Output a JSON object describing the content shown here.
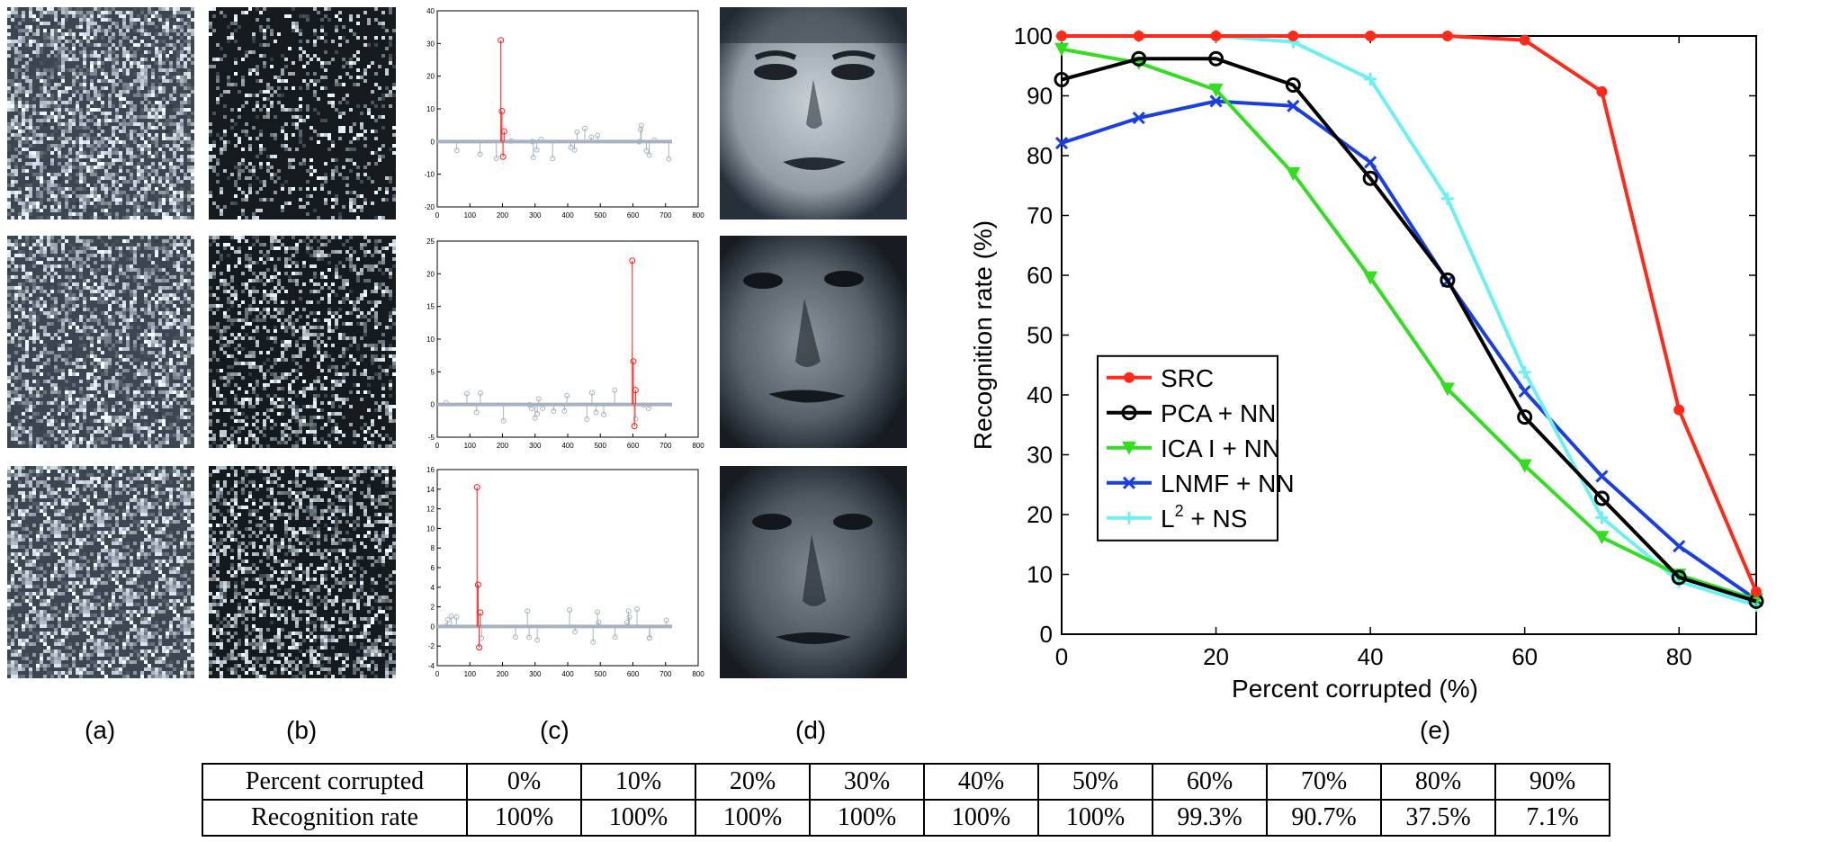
{
  "captions": [
    "(a)",
    "(b)",
    "(c)",
    "(d)",
    "(e)"
  ],
  "stem_plots": [
    {
      "yticks": [
        "40",
        "30",
        "20",
        "10",
        "0",
        "-10",
        "-20"
      ],
      "ylim": [
        -20,
        40
      ],
      "xticks": [
        "0",
        "100",
        "200",
        "300",
        "400",
        "500",
        "600",
        "700",
        "800"
      ],
      "xlim": [
        0,
        800
      ],
      "peak": {
        "x": 195,
        "y": 31
      }
    },
    {
      "yticks": [
        "25",
        "20",
        "15",
        "10",
        "5",
        "0",
        "-5"
      ],
      "ylim": [
        -5,
        25
      ],
      "xticks": [
        "0",
        "100",
        "200",
        "300",
        "400",
        "500",
        "600",
        "700",
        "800"
      ],
      "xlim": [
        0,
        800
      ],
      "peak": {
        "x": 598,
        "y": 22
      }
    },
    {
      "yticks": [
        "16",
        "14",
        "12",
        "10",
        "8",
        "6",
        "4",
        "2",
        "0",
        "-2",
        "-4"
      ],
      "ylim": [
        -4,
        16
      ],
      "xticks": [
        "0",
        "100",
        "200",
        "300",
        "400",
        "500",
        "600",
        "700",
        "800"
      ],
      "xlim": [
        0,
        800
      ],
      "peak": {
        "x": 122,
        "y": 14.2
      }
    }
  ],
  "chart_data": {
    "type": "line",
    "xlabel": "Percent corrupted (%)",
    "ylabel": "Recognition rate (%)",
    "xlim": [
      0,
      90
    ],
    "ylim": [
      0,
      100
    ],
    "xticks": [
      0,
      20,
      40,
      60,
      80
    ],
    "yticks": [
      0,
      10,
      20,
      30,
      40,
      50,
      60,
      70,
      80,
      90,
      100
    ],
    "x": [
      0,
      10,
      20,
      30,
      40,
      50,
      60,
      70,
      80,
      90
    ],
    "legend_position": "center-left",
    "series": [
      {
        "name": "SRC",
        "color": "#ff2a1a",
        "marker": "dot",
        "values": [
          100,
          100,
          100,
          100,
          100,
          100,
          99.3,
          90.7,
          37.5,
          7.1
        ]
      },
      {
        "name": "PCA + NN",
        "color": "#000000",
        "marker": "circle",
        "values": [
          92.7,
          96.2,
          96.2,
          91.8,
          76.2,
          59.2,
          36.3,
          22.7,
          9.5,
          5.5
        ]
      },
      {
        "name": "ICA I + NN",
        "color": "#33dd22",
        "marker": "triangle",
        "values": [
          97.8,
          95.5,
          91.0,
          77.0,
          59.6,
          41.0,
          28.2,
          16.2,
          9.9,
          5.8
        ]
      },
      {
        "name": "LNMF + NN",
        "color": "#1a3ee0",
        "marker": "x",
        "values": [
          82.1,
          86.3,
          89.1,
          88.3,
          78.9,
          59.0,
          40.6,
          26.4,
          14.7,
          5.8
        ]
      },
      {
        "name": "L2 + NS",
        "color": "#6ff0f0",
        "marker": "plus",
        "values": [
          100,
          100,
          100,
          99.0,
          92.8,
          72.8,
          43.8,
          19.5,
          8.8,
          4.8
        ]
      }
    ]
  },
  "table": {
    "rows": [
      {
        "header": "Percent corrupted",
        "cells": [
          "0%",
          "10%",
          "20%",
          "30%",
          "40%",
          "50%",
          "60%",
          "70%",
          "80%",
          "90%"
        ]
      },
      {
        "header": "Recognition rate",
        "cells": [
          "100%",
          "100%",
          "100%",
          "100%",
          "100%",
          "100%",
          "99.3%",
          "90.7%",
          "37.5%",
          "7.1%"
        ]
      }
    ]
  }
}
